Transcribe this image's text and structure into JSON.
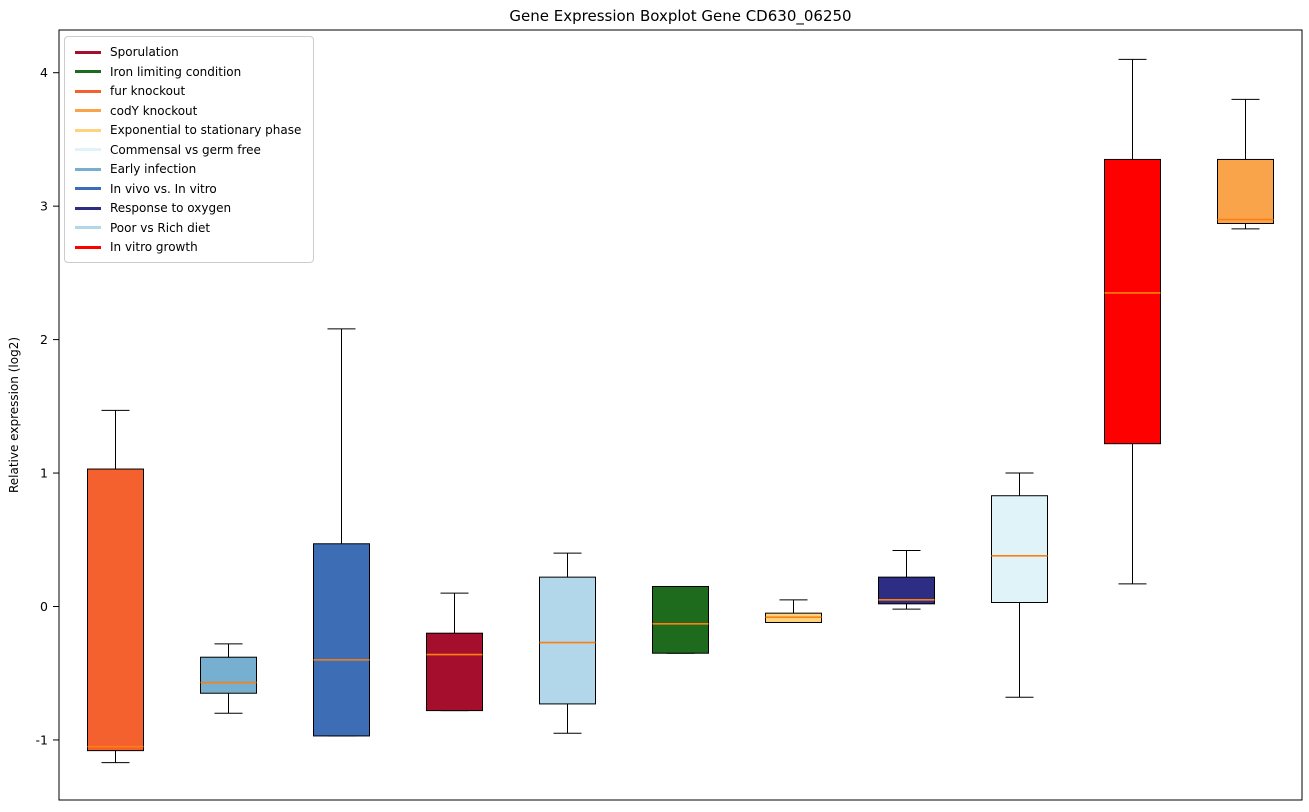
{
  "chart_data": {
    "type": "boxplot",
    "title": "Gene Expression Boxplot Gene CD630_06250",
    "xlabel": "",
    "ylabel": "Relative expression (log2)",
    "ylim": [
      -1.45,
      4.32
    ],
    "yticks": [
      -1,
      0,
      1,
      2,
      3,
      4
    ],
    "grid": false,
    "median_color": "#ff7f0e",
    "legend": {
      "position": "upper-left",
      "entries": [
        {
          "label": "Sporulation",
          "color": "#a50f2d"
        },
        {
          "label": "Iron limiting condition",
          "color": "#1e6b1e"
        },
        {
          "label": "fur knockout",
          "color": "#f4612e"
        },
        {
          "label": "codY knockout",
          "color": "#f9a34a"
        },
        {
          "label": "Exponential to stationary phase",
          "color": "#fed37f"
        },
        {
          "label": "Commensal vs germ free",
          "color": "#e0f3f8"
        },
        {
          "label": "Early infection",
          "color": "#76afd0"
        },
        {
          "label": "In vivo vs. In vitro",
          "color": "#3d6db5"
        },
        {
          "label": "Response to oxygen",
          "color": "#2c2d83"
        },
        {
          "label": "Poor vs Rich diet",
          "color": "#b3d7ea"
        },
        {
          "label": "In vitro growth",
          "color": "#fe0000"
        }
      ]
    },
    "boxes": [
      {
        "label": "fur knockout",
        "color": "#f4612e",
        "whisker_low": -1.17,
        "q1": -1.08,
        "median": -1.05,
        "q3": 1.03,
        "whisker_high": 1.47
      },
      {
        "label": "Early infection",
        "color": "#76afd0",
        "whisker_low": -0.8,
        "q1": -0.65,
        "median": -0.57,
        "q3": -0.38,
        "whisker_high": -0.28
      },
      {
        "label": "In vivo vs. In vitro",
        "color": "#3d6db5",
        "whisker_low": -0.97,
        "q1": -0.97,
        "median": -0.4,
        "q3": 0.47,
        "whisker_high": 2.08
      },
      {
        "label": "Sporulation",
        "color": "#a50f2d",
        "whisker_low": -0.78,
        "q1": -0.78,
        "median": -0.36,
        "q3": -0.2,
        "whisker_high": 0.1
      },
      {
        "label": "Poor vs Rich diet",
        "color": "#b3d7ea",
        "whisker_low": -0.95,
        "q1": -0.73,
        "median": -0.27,
        "q3": 0.22,
        "whisker_high": 0.4
      },
      {
        "label": "Iron limiting condition",
        "color": "#1e6b1e",
        "whisker_low": -0.35,
        "q1": -0.35,
        "median": -0.13,
        "q3": 0.15,
        "whisker_high": 0.15
      },
      {
        "label": "Exponential to stationary phase",
        "color": "#fed37f",
        "whisker_low": -0.12,
        "q1": -0.12,
        "median": -0.08,
        "q3": -0.05,
        "whisker_high": 0.05
      },
      {
        "label": "Response to oxygen",
        "color": "#2c2d83",
        "whisker_low": -0.02,
        "q1": 0.02,
        "median": 0.05,
        "q3": 0.22,
        "whisker_high": 0.42
      },
      {
        "label": "Commensal vs germ free",
        "color": "#e0f3f8",
        "whisker_low": -0.68,
        "q1": 0.03,
        "median": 0.38,
        "q3": 0.83,
        "whisker_high": 1.0
      },
      {
        "label": "In vitro growth",
        "color": "#fe0000",
        "whisker_low": 0.17,
        "q1": 1.22,
        "median": 2.35,
        "q3": 3.35,
        "whisker_high": 4.1
      },
      {
        "label": "codY knockout",
        "color": "#f9a34a",
        "whisker_low": 2.83,
        "q1": 2.87,
        "median": 2.9,
        "q3": 3.35,
        "whisker_high": 3.8
      }
    ]
  }
}
